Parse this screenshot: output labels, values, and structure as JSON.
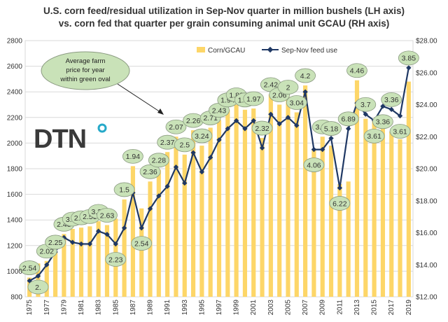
{
  "chart_data": {
    "type": "bar+line",
    "title_line1": "U.S. corn feed/residual utilization in Sep-Nov quarter in million bushels (LH axis)",
    "title_line2": "vs. corn fed that quarter per grain consuming animal unit GCAU (RH axis)",
    "years": [
      1975,
      1976,
      1977,
      1978,
      1979,
      1980,
      1981,
      1982,
      1983,
      1984,
      1985,
      1986,
      1987,
      1988,
      1989,
      1990,
      1991,
      1992,
      1993,
      1994,
      1995,
      1996,
      1997,
      1998,
      1999,
      2000,
      2001,
      2002,
      2003,
      2004,
      2005,
      2006,
      2007,
      2008,
      2009,
      2010,
      2011,
      2012,
      2013,
      2014,
      2015,
      2016,
      2017,
      2018,
      2019
    ],
    "x_tick_labels": [
      "1975",
      "1977",
      "1979",
      "1981",
      "1983",
      "1985",
      "1987",
      "1989",
      "1991",
      "1993",
      "1995",
      "1997",
      "1999",
      "2001",
      "2003",
      "2005",
      "2007",
      "2009",
      "2011",
      "2013",
      "2015",
      "2017",
      "2019"
    ],
    "left_axis": {
      "min": 800,
      "max": 2800,
      "ticks": [
        "800",
        "1000",
        "1200",
        "1400",
        "1600",
        "1800",
        "2000",
        "2200",
        "2400",
        "2600",
        "2800"
      ]
    },
    "right_axis": {
      "min": 12,
      "max": 28,
      "ticks": [
        "$12.00",
        "$14.00",
        "$16.00",
        "$18.00",
        "$20.00",
        "$22.00",
        "$24.00",
        "$26.00",
        "$28.00"
      ]
    },
    "series": [
      {
        "name": "Corn/GCAU",
        "axis": "left",
        "kind": "bar",
        "color": "#FDD668",
        "values": [
          950,
          1060,
          1080,
          1150,
          1290,
          1330,
          1340,
          1350,
          1390,
          1360,
          1410,
          1560,
          1820,
          1490,
          1700,
          1790,
          1930,
          2050,
          1910,
          2100,
          1980,
          2120,
          2180,
          2260,
          2300,
          2260,
          2270,
          2040,
          2380,
          2300,
          2360,
          2240,
          2450,
          1950,
          2050,
          1980,
          1680,
          1700,
          2490,
          2190,
          2170,
          2180,
          2090,
          2030,
          2480
        ]
      },
      {
        "name": "Sep-Nov feed use",
        "axis": "right",
        "kind": "line",
        "color": "#1F3864",
        "values": [
          13.0,
          13.3,
          14.0,
          14.8,
          15.7,
          15.4,
          15.3,
          15.3,
          16.1,
          15.9,
          15.3,
          16.3,
          18.5,
          16.3,
          17.5,
          18.3,
          18.9,
          20.1,
          19.1,
          21.0,
          19.8,
          20.7,
          21.8,
          22.5,
          23.0,
          22.5,
          23.0,
          21.3,
          23.4,
          22.8,
          23.2,
          22.7,
          24.8,
          21.2,
          21.2,
          21.9,
          18.8,
          22.5,
          24.1,
          23.4,
          23.0,
          23.9,
          23.7,
          23.3,
          26.3
        ]
      }
    ],
    "price_labels": [
      "2.54",
      "2.",
      "2.02",
      "2.25",
      "2.48",
      "3.11",
      "2.47",
      "2.55",
      "3.21",
      "2.63",
      "2.23",
      "1.5",
      "1.94",
      "2.54",
      "2.36",
      "2.28",
      "2.37",
      "2.07",
      "2.5",
      "2.26",
      "3.24",
      "2.71",
      "2.43",
      "1.94",
      "1.82",
      "1.85",
      "1.97",
      "2.32",
      "2.42",
      "2.06",
      "2",
      "3.04",
      "4.2",
      "4.06",
      "3.55",
      "5.18",
      "6.22",
      "6.89",
      "4.46",
      "3.7",
      "3.61",
      "3.36",
      "3.36",
      "3.61",
      "3.85"
    ],
    "legend": {
      "position": "top-right"
    },
    "annotation": {
      "lines": [
        "Average farm",
        "price for year",
        "within green oval"
      ]
    },
    "logo": {
      "text": "DTN"
    }
  }
}
